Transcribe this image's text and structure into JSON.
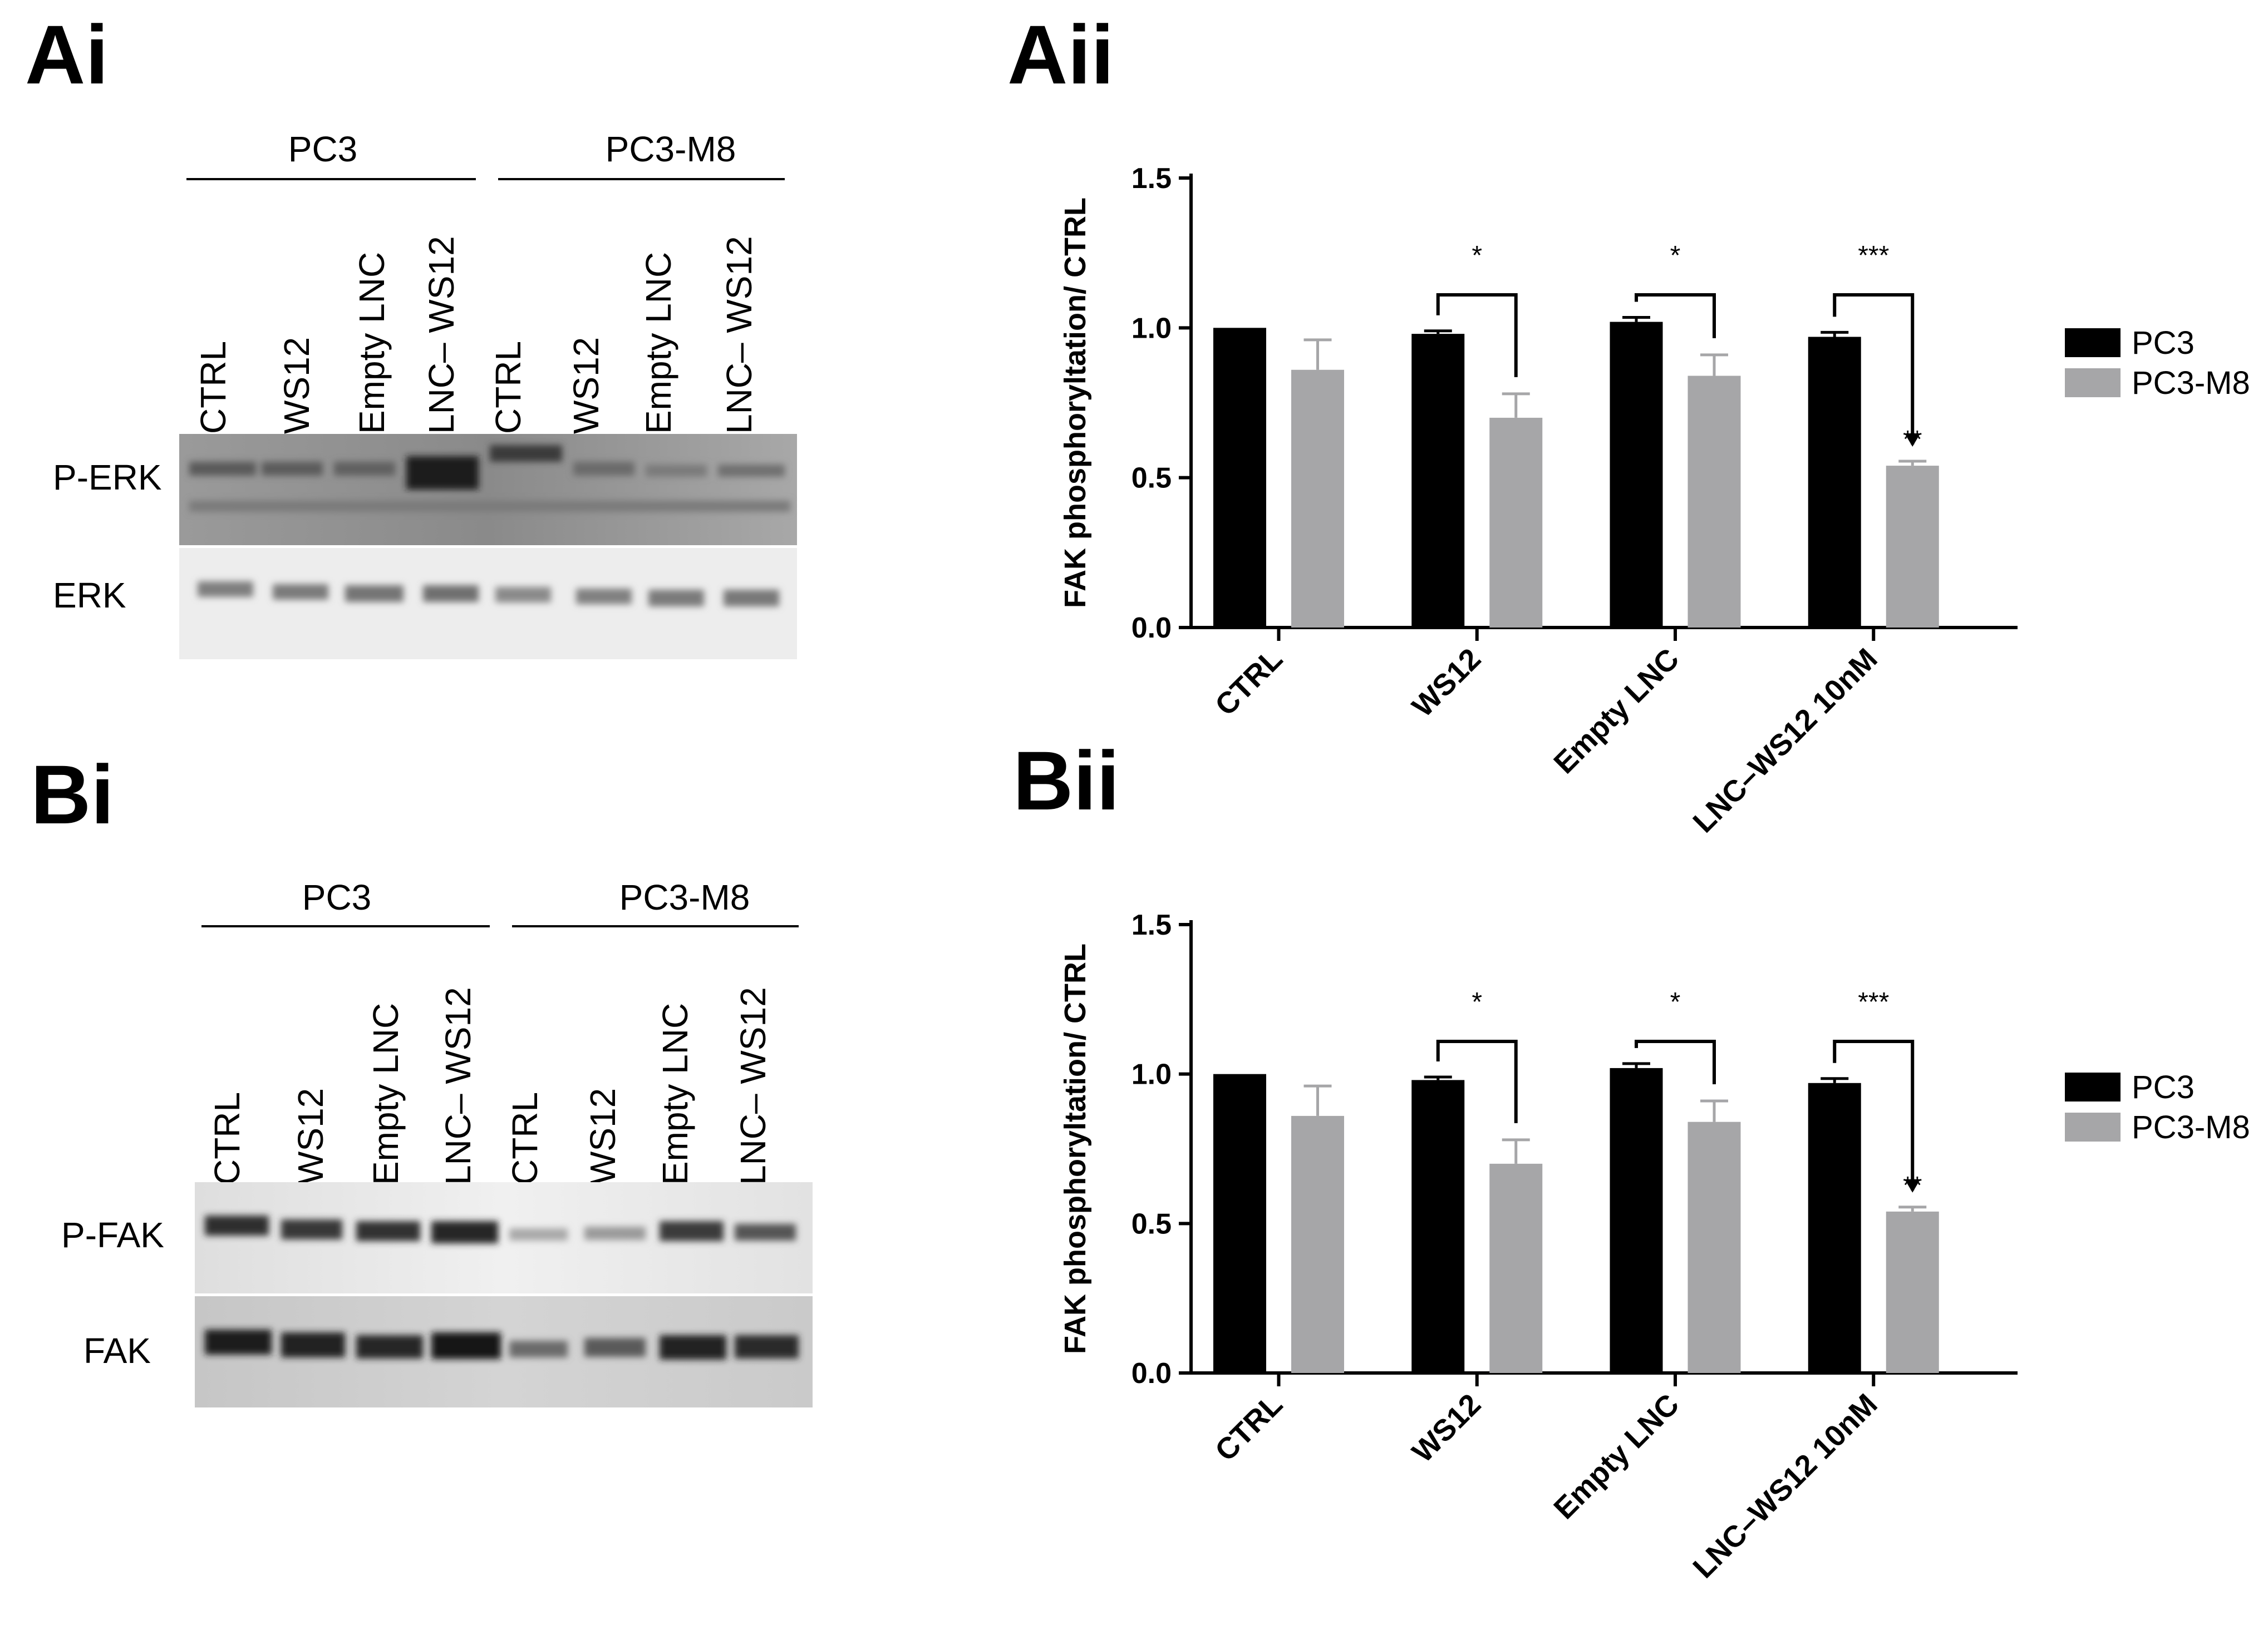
{
  "panels": {
    "ai": "Ai",
    "aii": "Aii",
    "bi": "Bi",
    "bii": "Bii"
  },
  "blots": [
    {
      "id": "A",
      "groups": [
        "PC3",
        "PC3-M8"
      ],
      "lanes": [
        "CTRL",
        "WS12",
        "Empty LNC",
        "LNC– WS12",
        "CTRL",
        "WS12",
        "Empty LNC",
        "LNC– WS12"
      ],
      "rows": [
        "P-ERK",
        "ERK"
      ]
    },
    {
      "id": "B",
      "groups": [
        "PC3",
        "PC3-M8"
      ],
      "lanes": [
        "CTRL",
        "WS12",
        "Empty LNC",
        "LNC– WS12",
        "CTRL",
        "WS12",
        "Empty LNC",
        "LNC– WS12"
      ],
      "rows": [
        "P-FAK",
        "FAK"
      ]
    }
  ],
  "chart_data": [
    {
      "type": "bar",
      "panel": "Aii",
      "categories": [
        "CTRL",
        "WS12",
        "Empty LNC",
        "LNC–WS12 10nM"
      ],
      "series": [
        {
          "name": "PC3",
          "color": "#000000",
          "values": [
            1.0,
            0.98,
            1.02,
            0.97
          ],
          "errors": [
            0.0,
            0.01,
            0.015,
            0.015
          ]
        },
        {
          "name": "PC3-M8",
          "color": "#a6a6a8",
          "values": [
            0.86,
            0.7,
            0.84,
            0.54
          ],
          "errors": [
            0.1,
            0.08,
            0.07,
            0.015
          ]
        }
      ],
      "ylabel": "FAK phosphoryltation/ CTRL",
      "ylim": [
        0,
        1.5
      ],
      "yticks": [
        "0.0",
        "0.5",
        "1.0",
        "1.5"
      ],
      "significance": [
        "*",
        "*",
        "***"
      ],
      "bar_annotation": "**",
      "legend": "right"
    },
    {
      "type": "bar",
      "panel": "Bii",
      "categories": [
        "CTRL",
        "WS12",
        "Empty LNC",
        "LNC–WS12 10nM"
      ],
      "series": [
        {
          "name": "PC3",
          "color": "#000000",
          "values": [
            1.0,
            0.98,
            1.02,
            0.97
          ],
          "errors": [
            0.0,
            0.01,
            0.015,
            0.015
          ]
        },
        {
          "name": "PC3-M8",
          "color": "#a6a6a8",
          "values": [
            0.86,
            0.7,
            0.84,
            0.54
          ],
          "errors": [
            0.1,
            0.08,
            0.07,
            0.015
          ]
        }
      ],
      "ylabel": "FAK phosphoryltation/ CTRL",
      "ylim": [
        0,
        1.5
      ],
      "yticks": [
        "0.0",
        "0.5",
        "1.0",
        "1.5"
      ],
      "significance": [
        "*",
        "*",
        "***"
      ],
      "bar_annotation": "**",
      "legend": "right"
    }
  ]
}
